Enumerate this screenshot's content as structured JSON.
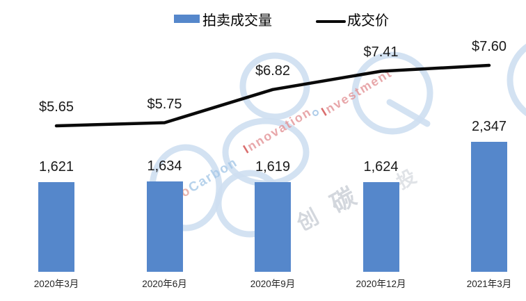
{
  "legend": {
    "bar_label": "拍卖成交量",
    "line_label": "成交价"
  },
  "colors": {
    "bar": "#5587CB",
    "line": "#0A0A0A",
    "label_text": "#1A1A1A",
    "axis_text": "#262626",
    "watermark_ring": "#CEDFF1",
    "watermark_blue_text": "#A5C7E7",
    "watermark_red_text": "#E39295",
    "watermark_red_initial": "#D14B4B",
    "watermark_prefix_text": "#E2A39B",
    "watermark_gray_text": "#BCC2CC"
  },
  "watermark": {
    "carbon_prefix": "o",
    "word_carbon": "Carbon",
    "word_innovation": "Innovation",
    "word_investment": "Investment",
    "hanzi_chuang": "创",
    "hanzi_tan": "碳",
    "hanzi_tou": "投"
  },
  "chart_data": {
    "type": "combo-bar-line",
    "categories": [
      "2020年3月",
      "2020年6月",
      "2020年9月",
      "2020年12月",
      "2021年3月"
    ],
    "series": [
      {
        "name": "拍卖成交量",
        "type": "bar",
        "values": [
          1621,
          1634,
          1619,
          1624,
          2347
        ],
        "labels": [
          "1,621",
          "1,634",
          "1,619",
          "1,624",
          "2,347"
        ],
        "color": "#5587CB"
      },
      {
        "name": "成交价",
        "type": "line",
        "values": [
          5.65,
          5.75,
          6.82,
          7.41,
          7.6
        ],
        "labels": [
          "$5.65",
          "$5.75",
          "$6.82",
          "$7.41",
          "$7.60"
        ],
        "color": "#0A0A0A"
      }
    ],
    "title": "",
    "xlabel": "",
    "ylabel": "",
    "legend_position": "top",
    "gridlines": false,
    "axes_visible": false,
    "data_labels": true
  }
}
